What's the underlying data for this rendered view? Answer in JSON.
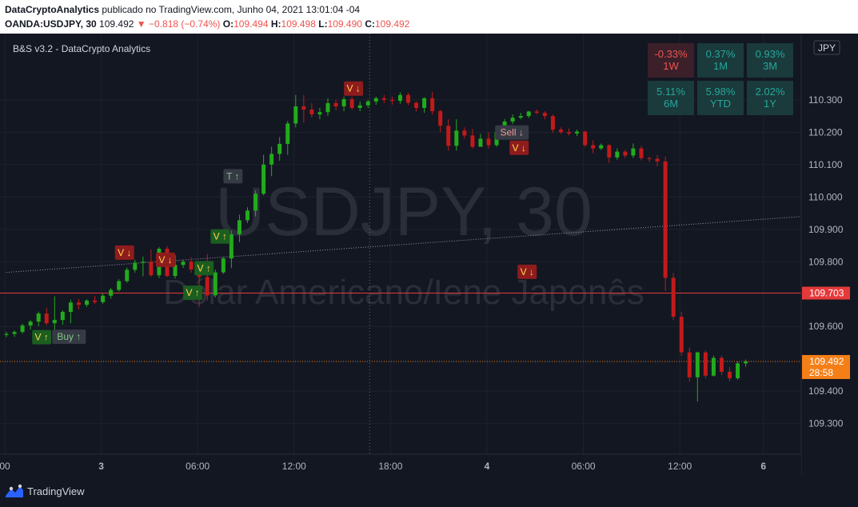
{
  "header": {
    "publisher": "DataCryptoAnalytics",
    "published_text": "publicado no TradingView.com, Junho 04, 2021 13:01:04 -04",
    "symbol": "OANDA:USDJPY, 30",
    "last": "109.492",
    "change": "−0.818 (−0.74%)",
    "o_label": "O:",
    "o_value": "109.494",
    "h_label": "H:",
    "h_value": "109.498",
    "l_label": "L:",
    "l_value": "109.490",
    "c_label": "C:",
    "c_value": "109.492"
  },
  "indicator_label": "B&S v3.2 - DataCrypto Analytics",
  "currency_badge": "JPY",
  "watermark": {
    "line1": "USDJPY, 30",
    "line2": "Dólar Americano/Iene Japonês"
  },
  "performance": [
    {
      "value": "-0.33%",
      "period": "1W",
      "status": "negative"
    },
    {
      "value": "0.37%",
      "period": "1M",
      "status": "positive"
    },
    {
      "value": "0.93%",
      "period": "3M",
      "status": "positive"
    },
    {
      "value": "5.11%",
      "period": "6M",
      "status": "positive"
    },
    {
      "value": "5.98%",
      "period": "YTD",
      "status": "positive"
    },
    {
      "value": "2.02%",
      "period": "1Y",
      "status": "positive"
    }
  ],
  "price_tags": [
    {
      "name": "level-tag",
      "price": "109.703",
      "y": 109.703,
      "bg": "#e5393a",
      "countdown": ""
    },
    {
      "name": "last-price-tag",
      "price": "109.492",
      "y": 109.492,
      "bg": "#f57f17",
      "countdown": "28:58"
    }
  ],
  "footer": {
    "brand": "TradingView"
  },
  "colors": {
    "up": "#22ab1c",
    "down": "#c21a1a",
    "background": "#131722",
    "grid": "#1e222d",
    "trend": "#9598a1"
  },
  "chart_data": {
    "type": "candlestick",
    "symbol": "OANDA:USDJPY",
    "timeframe": "30",
    "ylim": [
      109.23,
      110.48
    ],
    "y_ticks": [
      "110.300",
      "110.200",
      "110.100",
      "110.000",
      "109.900",
      "109.800",
      "109.600",
      "109.400",
      "109.300"
    ],
    "y_tick_values": [
      110.3,
      110.2,
      110.1,
      110.0,
      109.9,
      109.8,
      109.6,
      109.4,
      109.3
    ],
    "x_ticks": [
      {
        "label": "00",
        "bar": -0.2,
        "bold": false
      },
      {
        "label": "3",
        "bar": 11.8,
        "bold": true
      },
      {
        "label": "06:00",
        "bar": 23.8,
        "bold": false
      },
      {
        "label": "12:00",
        "bar": 35.8,
        "bold": false
      },
      {
        "label": "18:00",
        "bar": 47.8,
        "bold": false
      },
      {
        "label": "4",
        "bar": 59.8,
        "bold": true
      },
      {
        "label": "06:00",
        "bar": 71.8,
        "bold": false
      },
      {
        "label": "12:00",
        "bar": 83.8,
        "bold": false
      },
      {
        "label": "6",
        "bar": 94.2,
        "bold": true
      }
    ],
    "candles": [
      [
        109.574,
        109.584,
        109.567,
        109.577
      ],
      [
        109.577,
        109.588,
        109.568,
        109.583
      ],
      [
        109.583,
        109.608,
        109.578,
        109.603
      ],
      [
        109.603,
        109.62,
        109.59,
        109.615
      ],
      [
        109.615,
        109.646,
        109.6,
        109.64
      ],
      [
        109.64,
        109.658,
        109.604,
        109.61
      ],
      [
        109.61,
        109.693,
        109.578,
        109.62
      ],
      [
        109.62,
        109.65,
        109.605,
        109.645
      ],
      [
        109.645,
        109.683,
        109.61,
        109.674
      ],
      [
        109.674,
        109.685,
        109.652,
        109.667
      ],
      [
        109.667,
        109.684,
        109.66,
        109.68
      ],
      [
        109.68,
        109.694,
        109.669,
        109.675
      ],
      [
        109.675,
        109.701,
        109.67,
        109.695
      ],
      [
        109.695,
        109.719,
        109.686,
        109.713
      ],
      [
        109.713,
        109.746,
        109.708,
        109.74
      ],
      [
        109.74,
        109.782,
        109.735,
        109.775
      ],
      [
        109.775,
        109.806,
        109.766,
        109.797
      ],
      [
        109.797,
        109.816,
        109.755,
        109.8
      ],
      [
        109.8,
        109.838,
        109.754,
        109.758
      ],
      [
        109.758,
        109.845,
        109.75,
        109.84
      ],
      [
        109.84,
        109.848,
        109.752,
        109.756
      ],
      [
        109.756,
        109.82,
        109.748,
        109.79
      ],
      [
        109.79,
        109.806,
        109.781,
        109.8
      ],
      [
        109.8,
        109.814,
        109.766,
        109.776
      ],
      [
        109.776,
        109.781,
        109.66,
        109.753
      ],
      [
        109.753,
        109.824,
        109.68,
        109.696
      ],
      [
        109.696,
        109.776,
        109.69,
        109.767
      ],
      [
        109.767,
        109.815,
        109.762,
        109.81
      ],
      [
        109.81,
        109.896,
        109.78,
        109.885
      ],
      [
        109.885,
        109.945,
        109.86,
        109.928
      ],
      [
        109.928,
        109.968,
        109.92,
        109.958
      ],
      [
        109.958,
        110.02,
        109.94,
        110.01
      ],
      [
        110.01,
        110.13,
        110.005,
        110.1
      ],
      [
        110.1,
        110.155,
        110.064,
        110.133
      ],
      [
        110.133,
        110.185,
        110.112,
        110.164
      ],
      [
        110.164,
        110.235,
        110.13,
        110.227
      ],
      [
        110.227,
        110.315,
        110.215,
        110.28
      ],
      [
        110.28,
        110.315,
        110.23,
        110.27
      ],
      [
        110.27,
        110.29,
        110.245,
        110.255
      ],
      [
        110.255,
        110.275,
        110.24,
        110.262
      ],
      [
        110.262,
        110.305,
        110.25,
        110.29
      ],
      [
        110.29,
        110.3,
        110.268,
        110.28
      ],
      [
        110.28,
        110.31,
        110.265,
        110.302
      ],
      [
        110.302,
        110.31,
        110.27,
        110.275
      ],
      [
        110.275,
        110.295,
        110.265,
        110.283
      ],
      [
        110.283,
        110.301,
        110.275,
        110.295
      ],
      [
        110.295,
        110.31,
        110.285,
        110.305
      ],
      [
        110.305,
        110.315,
        110.29,
        110.3
      ],
      [
        110.3,
        110.31,
        110.285,
        110.297
      ],
      [
        110.297,
        110.323,
        110.288,
        110.315
      ],
      [
        110.315,
        110.322,
        110.284,
        110.291
      ],
      [
        110.291,
        110.295,
        110.264,
        110.275
      ],
      [
        110.275,
        110.308,
        110.26,
        110.305
      ],
      [
        110.305,
        110.325,
        110.255,
        110.265
      ],
      [
        110.265,
        110.27,
        110.2,
        110.22
      ],
      [
        110.22,
        110.24,
        110.143,
        110.158
      ],
      [
        110.158,
        110.24,
        110.143,
        110.205
      ],
      [
        110.205,
        110.215,
        110.18,
        110.19
      ],
      [
        110.19,
        110.21,
        110.15,
        110.155
      ],
      [
        110.155,
        110.195,
        110.155,
        110.18
      ],
      [
        110.18,
        110.2,
        110.15,
        110.16
      ],
      [
        110.16,
        110.215,
        110.155,
        110.2
      ],
      [
        110.2,
        110.241,
        110.19,
        110.233
      ],
      [
        110.233,
        110.255,
        110.225,
        110.245
      ],
      [
        110.245,
        110.26,
        110.24,
        110.25
      ],
      [
        110.25,
        110.266,
        110.244,
        110.264
      ],
      [
        110.264,
        110.27,
        110.255,
        110.26
      ],
      [
        110.26,
        110.265,
        110.24,
        110.25
      ],
      [
        110.25,
        110.255,
        110.198,
        110.208
      ],
      [
        110.208,
        110.215,
        110.195,
        110.2
      ],
      [
        110.2,
        110.212,
        110.19,
        110.196
      ],
      [
        110.196,
        110.208,
        110.188,
        110.202
      ],
      [
        110.202,
        110.205,
        110.155,
        110.16
      ],
      [
        110.16,
        110.175,
        110.135,
        110.15
      ],
      [
        110.15,
        110.165,
        110.145,
        110.16
      ],
      [
        110.16,
        110.163,
        110.105,
        110.122
      ],
      [
        110.122,
        110.15,
        110.115,
        110.14
      ],
      [
        110.14,
        110.145,
        110.12,
        110.128
      ],
      [
        110.128,
        110.165,
        110.12,
        110.15
      ],
      [
        110.15,
        110.158,
        110.113,
        110.12
      ],
      [
        110.12,
        110.125,
        110.108,
        110.118
      ],
      [
        110.118,
        110.13,
        110.095,
        110.11
      ],
      [
        110.11,
        110.125,
        109.71,
        109.75
      ],
      [
        109.75,
        109.765,
        109.62,
        109.63
      ],
      [
        109.63,
        109.645,
        109.51,
        109.52
      ],
      [
        109.52,
        109.535,
        109.43,
        109.443
      ],
      [
        109.443,
        109.522,
        109.368,
        109.52
      ],
      [
        109.52,
        109.525,
        109.44,
        109.448
      ],
      [
        109.448,
        109.51,
        109.445,
        109.503
      ],
      [
        109.503,
        109.51,
        109.45,
        109.46
      ],
      [
        109.46,
        109.475,
        109.43,
        109.44
      ],
      [
        109.44,
        109.492,
        109.435,
        109.486
      ],
      [
        109.486,
        109.498,
        109.475,
        109.492
      ]
    ],
    "signals": [
      {
        "label": "V",
        "arrow": "↑",
        "side": "up",
        "bar": 4.4,
        "price": 109.567
      },
      {
        "label": "Buy",
        "arrow": "↑",
        "side": "up_gray",
        "bar": 7.8,
        "price": 109.568
      },
      {
        "label": "V",
        "arrow": "↓",
        "side": "down",
        "bar": 14.7,
        "price": 109.828
      },
      {
        "label": "V",
        "arrow": "↓",
        "side": "down",
        "bar": 19.8,
        "price": 109.806
      },
      {
        "label": "V",
        "arrow": "↑",
        "side": "up",
        "bar": 23.2,
        "price": 109.704
      },
      {
        "label": "V",
        "arrow": "↑",
        "side": "up",
        "bar": 24.6,
        "price": 109.78
      },
      {
        "label": "V",
        "arrow": "↑",
        "side": "up",
        "bar": 26.6,
        "price": 109.878
      },
      {
        "label": "T",
        "arrow": "↑",
        "side": "up_gray",
        "bar": 28.2,
        "price": 110.064
      },
      {
        "label": "V",
        "arrow": "↓",
        "side": "down",
        "bar": 43.2,
        "price": 110.335
      },
      {
        "label": "V",
        "arrow": "↓",
        "side": "down",
        "bar": 63.8,
        "price": 110.152
      },
      {
        "label": "Sell",
        "arrow": "↓",
        "side": "down_gray",
        "bar": 62.9,
        "price": 110.199
      },
      {
        "label": "V",
        "arrow": "↓",
        "side": "down",
        "bar": 64.8,
        "price": 109.769
      }
    ],
    "hline": 109.703,
    "last_price": 109.492,
    "crosshair_bar": 45.2,
    "trendline": [
      [
        0,
        109.767
      ],
      [
        82,
        109.91
      ]
    ]
  }
}
